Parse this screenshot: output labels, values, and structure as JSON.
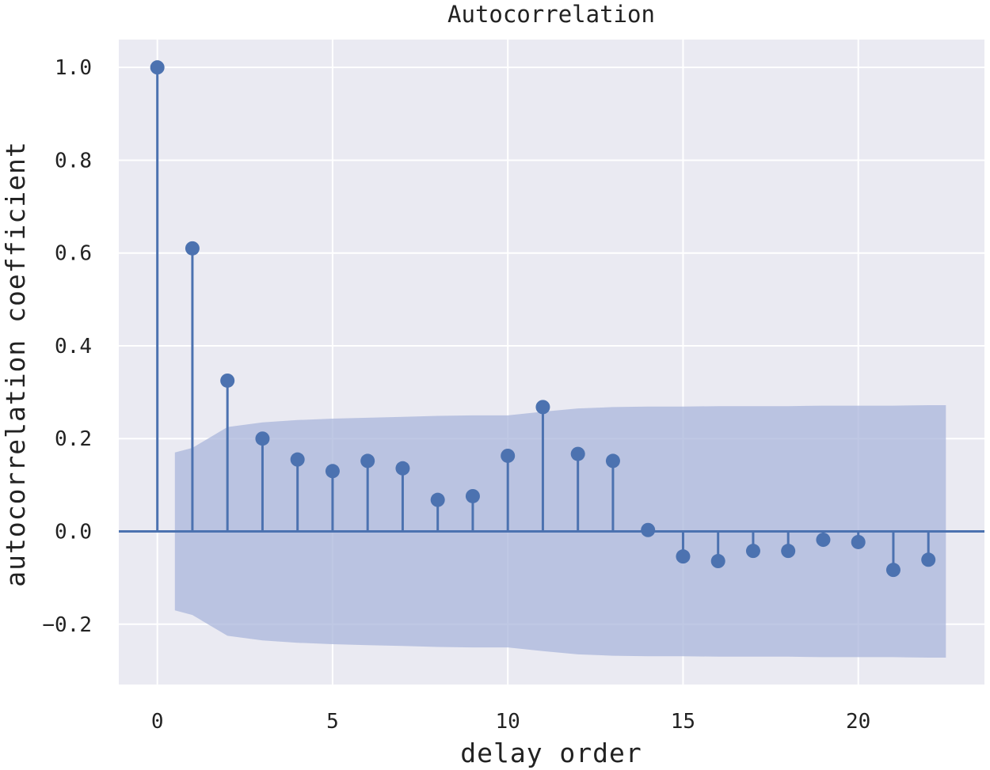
{
  "chart_data": {
    "type": "stem",
    "title": "Autocorrelation",
    "xlabel": "delay order",
    "ylabel": "autocorrelation coefficient",
    "xlim": [
      -1.1,
      23.6
    ],
    "ylim": [
      -0.33,
      1.06
    ],
    "x_ticks": [
      0,
      5,
      10,
      15,
      20
    ],
    "x_tick_labels": [
      "0",
      "5",
      "10",
      "15",
      "20"
    ],
    "y_ticks": [
      1.0,
      0.8,
      0.6,
      0.4,
      0.2,
      0.0,
      -0.2
    ],
    "y_tick_labels": [
      "1.0",
      "0.8",
      "0.6",
      "0.4",
      "0.2",
      "0.0",
      "−0.2"
    ],
    "grid": true,
    "x": [
      0,
      1,
      2,
      3,
      4,
      5,
      6,
      7,
      8,
      9,
      10,
      11,
      12,
      13,
      14,
      15,
      16,
      17,
      18,
      19,
      20,
      21,
      22
    ],
    "values": [
      1.0,
      0.61,
      0.325,
      0.2,
      0.155,
      0.13,
      0.152,
      0.136,
      0.068,
      0.076,
      0.163,
      0.268,
      0.167,
      0.152,
      0.003,
      -0.054,
      -0.064,
      -0.042,
      -0.042,
      -0.018,
      -0.023,
      -0.083,
      -0.061
    ],
    "confidence_band": {
      "x": [
        0.5,
        1,
        2,
        3,
        4,
        5,
        6,
        7,
        8,
        9,
        10,
        11,
        12,
        13,
        14,
        15,
        16,
        17,
        18,
        19,
        20,
        21,
        22,
        22.5
      ],
      "upper": [
        0.17,
        0.18,
        0.225,
        0.235,
        0.24,
        0.243,
        0.245,
        0.247,
        0.249,
        0.25,
        0.25,
        0.258,
        0.265,
        0.268,
        0.269,
        0.269,
        0.27,
        0.27,
        0.27,
        0.271,
        0.271,
        0.271,
        0.272,
        0.272
      ]
    },
    "colors": {
      "stem": "#4c72b0",
      "band": "#aab6db",
      "plot_background": "#eaeaf2",
      "grid": "#ffffff"
    }
  }
}
